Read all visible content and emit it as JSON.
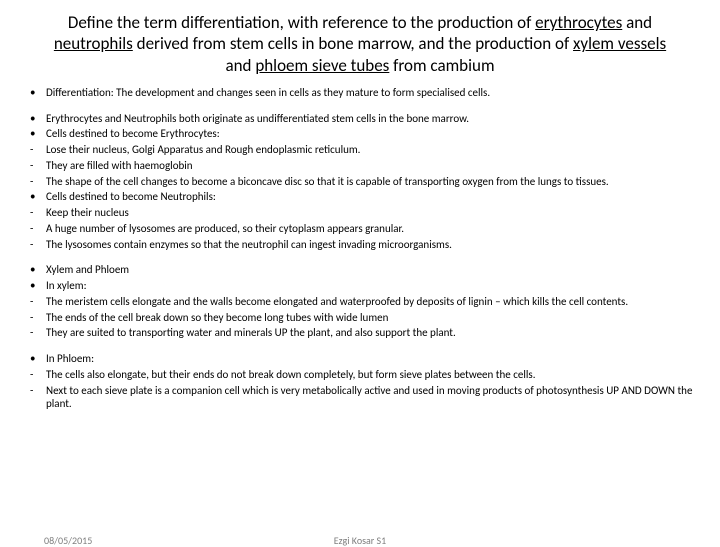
{
  "title": {
    "prefix": "Define the term differentiation, with reference to the production of ",
    "u1": "erythrocytes",
    "mid1": " and ",
    "u2": "neutrophils",
    "mid2": " derived from stem cells in bone marrow, and the production of ",
    "u3": "xylem vessels",
    "mid3": " and ",
    "u4": "phloem sieve tubes",
    "suffix": " from cambium"
  },
  "items": [
    {
      "marker": "•",
      "text": "Differentiation: The development and changes seen in cells as they mature to form specialised cells."
    },
    {
      "gap": true
    },
    {
      "marker": "•",
      "text": "Erythrocytes and Neutrophils both originate as undifferentiated stem cells in the bone marrow."
    },
    {
      "marker": "•",
      "text": "Cells destined to become Erythrocytes:"
    },
    {
      "marker": "-",
      "text": "Lose their nucleus, Golgi Apparatus and Rough endoplasmic reticulum."
    },
    {
      "marker": "-",
      "text": "They are filled with haemoglobin"
    },
    {
      "marker": "-",
      "text": "The shape of the cell changes to become a biconcave disc so that it is capable of transporting oxygen from the lungs to tissues."
    },
    {
      "marker": "•",
      "text": "Cells destined to become Neutrophils:"
    },
    {
      "marker": "-",
      "text": "Keep their nucleus"
    },
    {
      "marker": "-",
      "text": "A huge number of lysosomes are produced, so their cytoplasm appears granular."
    },
    {
      "marker": "-",
      "text": "The lysosomes contain enzymes so that the neutrophil can ingest invading microorganisms."
    },
    {
      "gap": true
    },
    {
      "marker": "•",
      "text": "Xylem and Phloem"
    },
    {
      "marker": "•",
      "text": "In xylem:"
    },
    {
      "marker": "-",
      "text": "The meristem cells elongate and the walls become elongated and waterproofed by deposits of lignin – which kills the cell contents."
    },
    {
      "marker": "-",
      "text": "The ends of the cell break down so they become long tubes with wide lumen"
    },
    {
      "marker": "-",
      "text": "They are suited to transporting water and minerals UP the plant, and also support the plant."
    },
    {
      "gap": true
    },
    {
      "marker": "•",
      "text": "In Phloem:"
    },
    {
      "marker": "-",
      "text": "The cells also elongate, but their ends do not break down completely, but form sieve plates between the cells."
    },
    {
      "marker": "-",
      "text": "Next to each sieve plate is a companion cell which is very metabolically active and used in moving products of photosynthesis UP AND DOWN the plant."
    }
  ],
  "footer": {
    "date": "08/05/2015",
    "author": "Ezgi Kosar S1"
  }
}
